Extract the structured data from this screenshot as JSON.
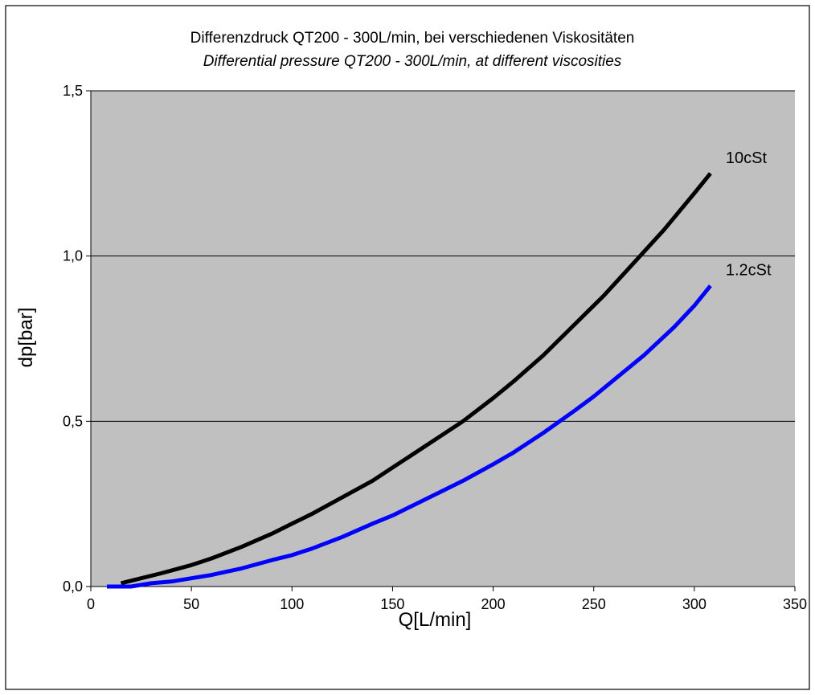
{
  "chart_data": {
    "type": "line",
    "title": "Differenzdruck QT200 - 300L/min, bei verschiedenen Viskositäten",
    "subtitle": "Differential pressure QT200 - 300L/min, at different viscosities",
    "xlabel": "Q[L/min]",
    "ylabel": "dp[bar]",
    "xlim": [
      0,
      350
    ],
    "ylim": [
      0,
      1.5
    ],
    "x_ticks": [
      "0",
      "50",
      "100",
      "150",
      "200",
      "250",
      "300",
      "350"
    ],
    "x_tick_values": [
      0,
      50,
      100,
      150,
      200,
      250,
      300,
      350
    ],
    "y_ticks": [
      "0,0",
      "0,5",
      "1,0",
      "1,5"
    ],
    "y_tick_values": [
      0,
      0.5,
      1.0,
      1.5
    ],
    "grid": "horizontal",
    "plot_background": "#c0c0c0",
    "legend": "none",
    "series": [
      {
        "name": "10cSt",
        "color": "#000000",
        "x": [
          15,
          25,
          35,
          50,
          60,
          75,
          90,
          100,
          110,
          125,
          140,
          150,
          160,
          175,
          185,
          200,
          210,
          225,
          240,
          255,
          270,
          285,
          300,
          308
        ],
        "values": [
          0.01,
          0.025,
          0.04,
          0.065,
          0.085,
          0.12,
          0.16,
          0.19,
          0.22,
          0.27,
          0.32,
          0.36,
          0.4,
          0.46,
          0.5,
          0.57,
          0.62,
          0.7,
          0.79,
          0.88,
          0.98,
          1.08,
          1.19,
          1.25
        ]
      },
      {
        "name": "1.2cSt",
        "color": "#0000ff",
        "x": [
          8,
          20,
          30,
          40,
          50,
          60,
          75,
          90,
          100,
          110,
          125,
          140,
          150,
          160,
          175,
          185,
          200,
          210,
          225,
          240,
          250,
          260,
          275,
          290,
          300,
          308
        ],
        "values": [
          0.0,
          0.0,
          0.01,
          0.015,
          0.025,
          0.035,
          0.055,
          0.08,
          0.095,
          0.115,
          0.15,
          0.19,
          0.215,
          0.245,
          0.29,
          0.32,
          0.37,
          0.405,
          0.465,
          0.53,
          0.575,
          0.625,
          0.7,
          0.785,
          0.85,
          0.91
        ]
      }
    ]
  }
}
